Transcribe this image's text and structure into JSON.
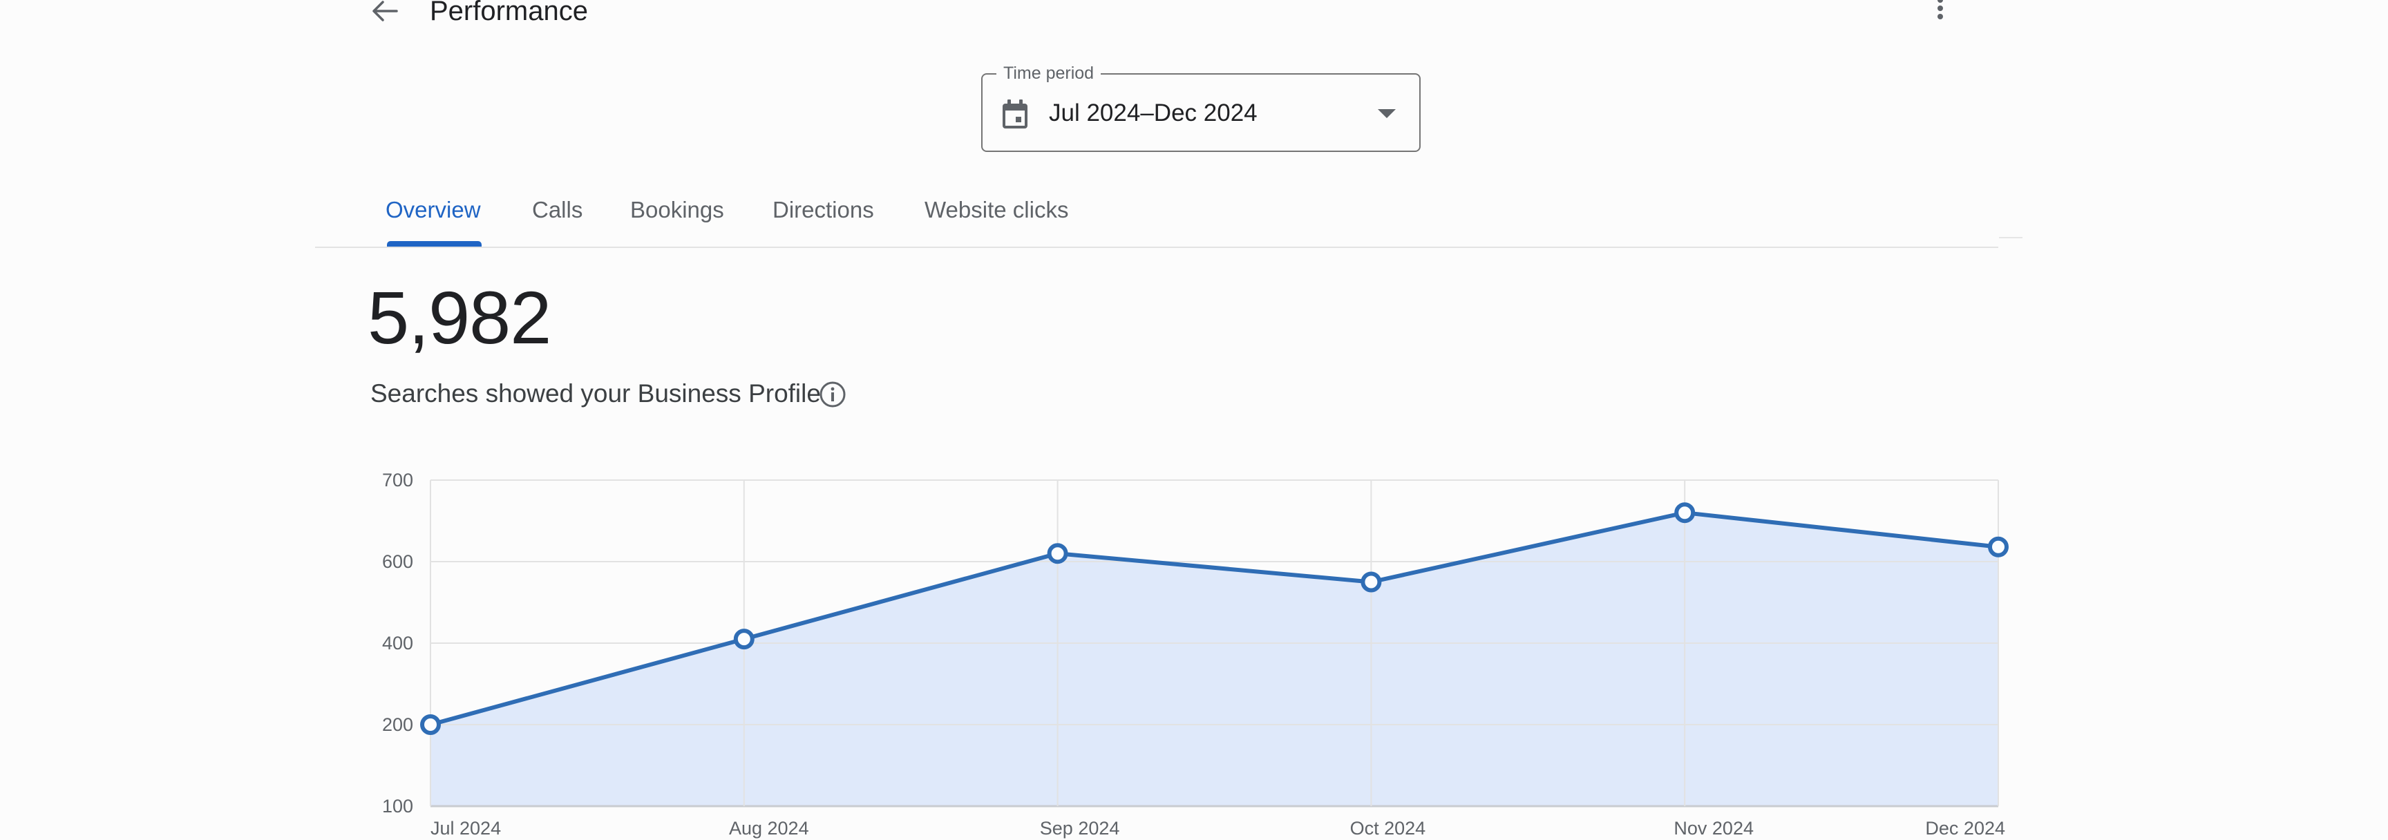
{
  "header": {
    "title": "Performance",
    "back_icon": "arrow-back-icon",
    "menu_icon": "more-vert-icon"
  },
  "time_period": {
    "label": "Time period",
    "value": "Jul 2024–Dec 2024",
    "icon": "calendar-icon",
    "caret_icon": "dropdown-caret-icon"
  },
  "tabs": [
    {
      "label": "Overview",
      "active": true
    },
    {
      "label": "Calls",
      "active": false
    },
    {
      "label": "Bookings",
      "active": false
    },
    {
      "label": "Directions",
      "active": false
    },
    {
      "label": "Website clicks",
      "active": false
    }
  ],
  "metric": {
    "value": "5,982",
    "label": "Searches showed your Business Profile",
    "info_icon": "info-icon"
  },
  "colors": {
    "accent": "#1f64c4",
    "line": "#2f6db5",
    "fill": "#dfe9fa",
    "grid": "#e2e2e2"
  },
  "chart_data": {
    "type": "area",
    "title": "",
    "xlabel": "",
    "ylabel": "",
    "categories": [
      "Jul 2024",
      "Aug 2024",
      "Sep 2024",
      "Oct 2024",
      "Nov 2024",
      "Dec 2024"
    ],
    "series": [
      {
        "name": "Searches showed your Business Profile",
        "values": [
          200,
          410,
          610,
          550,
          660,
          618
        ]
      }
    ],
    "y_tick_labels": [
      "700",
      "600",
      "400",
      "200",
      "100"
    ],
    "ylim": [
      100,
      700
    ],
    "grid": true,
    "legend": "none"
  }
}
